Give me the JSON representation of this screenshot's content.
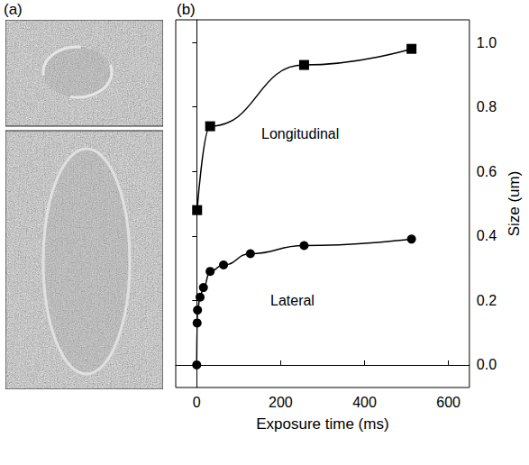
{
  "panel_labels": [
    "(a)",
    "(b)"
  ],
  "chart_data": {
    "type": "line",
    "x_label": "Exposure time (ms)",
    "y_label": "Size (um)",
    "annotations": [
      "Longitudinal",
      "Lateral"
    ],
    "xlim": [
      -50,
      650
    ],
    "xticks": [
      0,
      200,
      400,
      600
    ],
    "ylim": [
      -0.07,
      1.07
    ],
    "yticks": [
      {
        "value": 0,
        "label": "0.0"
      },
      {
        "value": 0.2,
        "label": "0.2"
      },
      {
        "value": 0.4,
        "label": "0.4"
      },
      {
        "value": 0.6,
        "label": "0.6"
      },
      {
        "value": 0.8,
        "label": "0.8"
      },
      {
        "value": 1,
        "label": "1.0"
      }
    ],
    "grid": false,
    "series": [
      {
        "name": "Longitudinal",
        "color": "#000000",
        "marker": "square",
        "line_style": "smooth",
        "x": [
          1,
          32,
          256,
          512
        ],
        "values": [
          0.48,
          0.74,
          0.93,
          0.98
        ]
      },
      {
        "name": "Lateral",
        "color": "#000000",
        "marker": "circle",
        "line_style": "smooth",
        "x": [
          0,
          1,
          2,
          8,
          16,
          32,
          64,
          128,
          256,
          512
        ],
        "values": [
          0.0,
          0.13,
          0.17,
          0.21,
          0.24,
          0.29,
          0.31,
          0.345,
          0.37,
          0.39
        ]
      }
    ]
  }
}
